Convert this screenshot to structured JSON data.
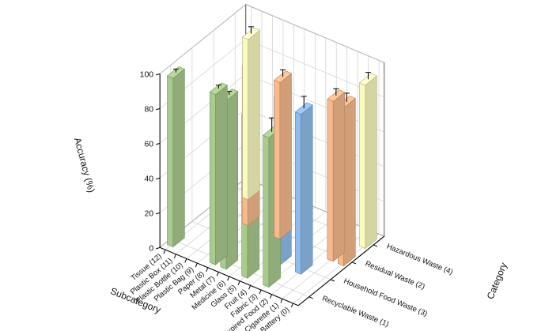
{
  "chart_data": {
    "type": "bar3d",
    "title": "",
    "zlabel": "Accuracy (%)",
    "xlabel": "Subcategory",
    "ylabel": "Category",
    "zlim": [
      0,
      100
    ],
    "zticks": [
      "0",
      "20",
      "40",
      "60",
      "80",
      "100"
    ],
    "subcategories": [
      "Battery (0)",
      "Cigarette (1)",
      "Expired Food (2)",
      "Fabric (3)",
      "Fruit (4)",
      "Glass (5)",
      "Medicine (6)",
      "Metal (7)",
      "Paper (8)",
      "Plastic Bag (9)",
      "Plastic Bottle (10)",
      "Plastic Box (11)",
      "Tissue (12)"
    ],
    "categories": [
      "Recyclable Waste (1)",
      "Household Food Waste (3)",
      "Residual Waste (2)",
      "Hazardous Waste (4)"
    ],
    "series": [
      {
        "name": "Recyclable Waste (1)",
        "color": "#a9cc8e",
        "points": [
          {
            "subcategory": "Fabric (3)",
            "value": 86,
            "error": 8
          },
          {
            "subcategory": "Glass (5)",
            "value": 93,
            "error": 4
          },
          {
            "subcategory": "Metal (7)",
            "value": 97,
            "error": 2
          },
          {
            "subcategory": "Paper (8)",
            "value": 98,
            "error": 2
          },
          {
            "subcategory": "Tissue (12)",
            "value": 97,
            "error": 2
          }
        ]
      },
      {
        "name": "Household Food Waste (3)",
        "color": "#8fbdeb",
        "points": [
          {
            "subcategory": "Expired Food (2)",
            "value": 92,
            "error": 7
          },
          {
            "subcategory": "Fruit (4)",
            "value": 96,
            "error": 8
          }
        ]
      },
      {
        "name": "Residual Waste (2)",
        "color": "#f7ba8c",
        "points": [
          {
            "subcategory": "Battery (0)",
            "value": 91,
            "error": 5
          },
          {
            "subcategory": "Cigarette (1)",
            "value": 92,
            "error": 4
          },
          {
            "subcategory": "Medicine (6)",
            "value": 90,
            "error": 4
          },
          {
            "subcategory": "Plastic Bag (9)",
            "value": 91,
            "error": 4
          }
        ]
      },
      {
        "name": "Hazardous Waste (4)",
        "color": "#fbfbc0",
        "points": [
          {
            "subcategory": "Battery (0)",
            "value": 94,
            "error": 4
          },
          {
            "subcategory": "Plastic Box (11)",
            "value": 92,
            "error": 4
          }
        ]
      }
    ]
  }
}
